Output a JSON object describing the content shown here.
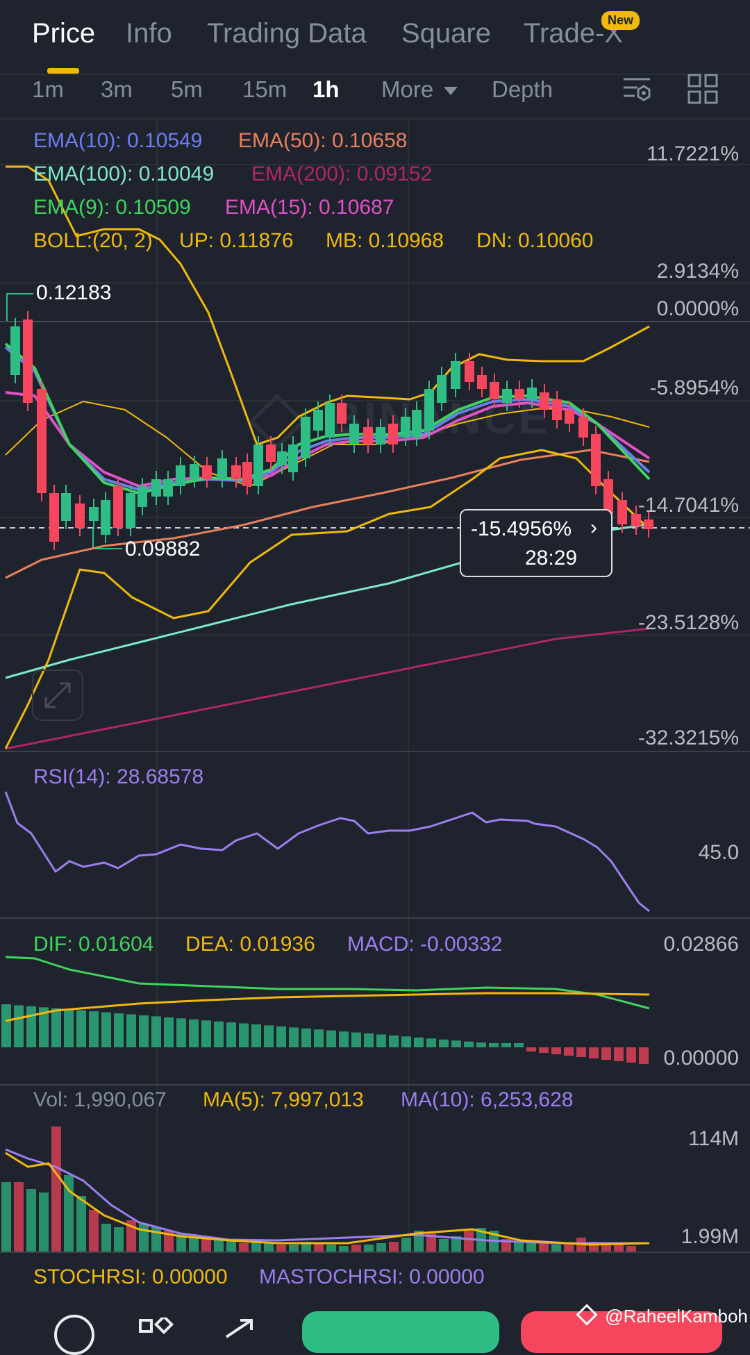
{
  "tabs": [
    {
      "label": "Price",
      "active": true
    },
    {
      "label": "Info",
      "active": false
    },
    {
      "label": "Trading Data",
      "active": false
    },
    {
      "label": "Square",
      "active": false
    },
    {
      "label": "Trade-X",
      "active": false
    }
  ],
  "new_badge": "New",
  "intervals": [
    "1m",
    "3m",
    "5m",
    "15m",
    "1h"
  ],
  "active_interval": "1h",
  "more_label": "More",
  "depth_label": "Depth",
  "indicators": {
    "ema10": "EMA(10): 0.10549",
    "ema50": "EMA(50): 0.10658",
    "ema100": "EMA(100): 0.10049",
    "ema200": "EMA(200): 0.09152",
    "ema9": "EMA(9): 0.10509",
    "ema15": "EMA(15): 0.10687",
    "boll": "BOLL:(20, 2)",
    "boll_up": "UP: 0.11876",
    "boll_mb": "MB: 0.10968",
    "boll_dn": "DN: 0.10060"
  },
  "price_axis": [
    "11.7221%",
    "2.9134%",
    "0.0000%",
    "-5.8954%",
    "-14.7041%",
    "-23.5128%",
    "-32.3215%"
  ],
  "high_label": "0.12183",
  "low_label": "0.09882",
  "current_change": "-15.4956%",
  "countdown": "28:29",
  "watermark": "BINANCE",
  "rsi": {
    "label": "RSI(14): 28.68578",
    "axis": "45.0"
  },
  "macd": {
    "dif": "DIF: 0.01604",
    "dea": "DEA: 0.01936",
    "macd": "MACD: -0.00332",
    "axis_top": "0.02866",
    "axis_bottom": "0.00000"
  },
  "volume": {
    "vol": "Vol: 1,990,067",
    "ma5": "MA(5): 7,997,013",
    "ma10": "MA(10): 6,253,628",
    "axis_top": "114M",
    "axis_bottom": "1.99M"
  },
  "stochrsi": {
    "stoch": "STOCHRSI: 0.00000",
    "mastoch": "MASTOCHRSI: 0.00000"
  },
  "watermark_credit": "@RaheelKamboh",
  "colors": {
    "ema10": "#6c7df0",
    "ema50": "#e9805c",
    "ema100": "#7ee8c7",
    "ema200": "#b0246a",
    "ema9": "#3fd45e",
    "ema15": "#e052c6",
    "boll": "#f0b90b",
    "up": "#2ebd85",
    "down": "#f6465d",
    "rsi": "#9d7ef0"
  }
}
